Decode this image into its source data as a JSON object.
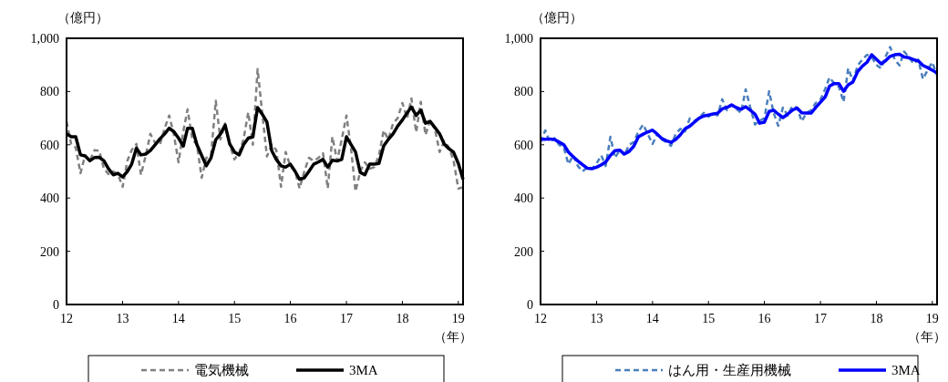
{
  "chart_data": [
    {
      "type": "line",
      "ylabel": "（億円）",
      "xlabel": "（年）",
      "legend": "bottom",
      "grid": false,
      "x": [
        "2012-01",
        "2012-02",
        "2012-03",
        "2012-04",
        "2012-05",
        "2012-06",
        "2012-07",
        "2012-08",
        "2012-09",
        "2012-10",
        "2012-11",
        "2012-12",
        "2013-01",
        "2013-02",
        "2013-03",
        "2013-04",
        "2013-05",
        "2013-06",
        "2013-07",
        "2013-08",
        "2013-09",
        "2013-10",
        "2013-11",
        "2013-12",
        "2014-01",
        "2014-02",
        "2014-03",
        "2014-04",
        "2014-05",
        "2014-06",
        "2014-07",
        "2014-08",
        "2014-09",
        "2014-10",
        "2014-11",
        "2014-12",
        "2015-01",
        "2015-02",
        "2015-03",
        "2015-04",
        "2015-05",
        "2015-06",
        "2015-07",
        "2015-08",
        "2015-09",
        "2015-10",
        "2015-11",
        "2015-12",
        "2016-01",
        "2016-02",
        "2016-03",
        "2016-04",
        "2016-05",
        "2016-06",
        "2016-07",
        "2016-08",
        "2016-09",
        "2016-10",
        "2016-11",
        "2016-12",
        "2017-01",
        "2017-02",
        "2017-03",
        "2017-04",
        "2017-05",
        "2017-06",
        "2017-07",
        "2017-08",
        "2017-09",
        "2017-10",
        "2017-11",
        "2017-12",
        "2018-01",
        "2018-02",
        "2018-03",
        "2018-04",
        "2018-05",
        "2018-06",
        "2018-07",
        "2018-08",
        "2018-09",
        "2018-10",
        "2018-11",
        "2018-12",
        "2019-01",
        "2019-02"
      ],
      "xlim": [
        "2012-01",
        "2019-02"
      ],
      "xticks": [
        {
          "value": "2012-01",
          "label": "12"
        },
        {
          "value": "2013-01",
          "label": "13"
        },
        {
          "value": "2014-01",
          "label": "14"
        },
        {
          "value": "2015-01",
          "label": "15"
        },
        {
          "value": "2016-01",
          "label": "16"
        },
        {
          "value": "2017-01",
          "label": "17"
        },
        {
          "value": "2018-01",
          "label": "18"
        },
        {
          "value": "2019-01",
          "label": "19"
        }
      ],
      "ylim": [
        0,
        1000
      ],
      "yticks": [
        0,
        200,
        400,
        600,
        800,
        {
          "value": 1000,
          "label": "1,000"
        }
      ],
      "series": [
        {
          "name": "電気機械",
          "color": "#808080",
          "line_style": "dashed",
          "values": [
            688,
            600,
            590,
            493,
            560,
            540,
            580,
            578,
            510,
            490,
            500,
            490,
            442,
            540,
            580,
            603,
            487,
            560,
            641,
            607,
            600,
            660,
            710,
            640,
            534,
            650,
            733,
            620,
            600,
            476,
            551,
            560,
            765,
            620,
            680,
            600,
            545,
            570,
            620,
            722,
            600,
            884,
            720,
            556,
            600,
            580,
            442,
            573,
            520,
            500,
            436,
            500,
            551,
            540,
            550,
            568,
            436,
            630,
            540,
            620,
            710,
            580,
            425,
            500,
            534,
            510,
            516,
            560,
            654,
            620,
            680,
            700,
            757,
            700,
            774,
            647,
            761,
            637,
            693,
            660,
            573,
            613,
            590,
            540,
            436,
            440
          ]
        },
        {
          "name": "3MA",
          "color": "#000000",
          "line_style": "solid",
          "values": [
            641,
            630,
            630,
            562,
            558,
            540,
            552,
            553,
            540,
            510,
            487,
            493,
            479,
            500,
            527,
            587,
            562,
            565,
            578,
            600,
            622,
            640,
            662,
            650,
            625,
            595,
            662,
            662,
            600,
            560,
            521,
            551,
            619,
            640,
            674,
            603,
            573,
            562,
            600,
            625,
            630,
            740,
            715,
            685,
            578,
            545,
            521,
            516,
            527,
            500,
            470,
            476,
            500,
            527,
            535,
            545,
            516,
            542,
            539,
            545,
            630,
            600,
            573,
            496,
            487,
            527,
            527,
            530,
            596,
            620,
            641,
            670,
            693,
            720,
            742,
            710,
            730,
            681,
            688,
            665,
            641,
            603,
            585,
            572,
            530,
            470
          ]
        }
      ]
    },
    {
      "type": "line",
      "ylabel": "（億円）",
      "xlabel": "（年）",
      "legend": "bottom",
      "grid": false,
      "x": [
        "2012-01",
        "2012-02",
        "2012-03",
        "2012-04",
        "2012-05",
        "2012-06",
        "2012-07",
        "2012-08",
        "2012-09",
        "2012-10",
        "2012-11",
        "2012-12",
        "2013-01",
        "2013-02",
        "2013-03",
        "2013-04",
        "2013-05",
        "2013-06",
        "2013-07",
        "2013-08",
        "2013-09",
        "2013-10",
        "2013-11",
        "2013-12",
        "2014-01",
        "2014-02",
        "2014-03",
        "2014-04",
        "2014-05",
        "2014-06",
        "2014-07",
        "2014-08",
        "2014-09",
        "2014-10",
        "2014-11",
        "2014-12",
        "2015-01",
        "2015-02",
        "2015-03",
        "2015-04",
        "2015-05",
        "2015-06",
        "2015-07",
        "2015-08",
        "2015-09",
        "2015-10",
        "2015-11",
        "2015-12",
        "2016-01",
        "2016-02",
        "2016-03",
        "2016-04",
        "2016-05",
        "2016-06",
        "2016-07",
        "2016-08",
        "2016-09",
        "2016-10",
        "2016-11",
        "2016-12",
        "2017-01",
        "2017-02",
        "2017-03",
        "2017-04",
        "2017-05",
        "2017-06",
        "2017-07",
        "2017-08",
        "2017-09",
        "2017-10",
        "2017-11",
        "2017-12",
        "2018-01",
        "2018-02",
        "2018-03",
        "2018-04",
        "2018-05",
        "2018-06",
        "2018-07",
        "2018-08",
        "2018-09",
        "2018-10",
        "2018-11",
        "2018-12",
        "2019-01",
        "2019-02"
      ],
      "xlim": [
        "2012-01",
        "2019-02"
      ],
      "xticks": [
        {
          "value": "2012-01",
          "label": "12"
        },
        {
          "value": "2013-01",
          "label": "13"
        },
        {
          "value": "2014-01",
          "label": "14"
        },
        {
          "value": "2015-01",
          "label": "15"
        },
        {
          "value": "2016-01",
          "label": "16"
        },
        {
          "value": "2017-01",
          "label": "17"
        },
        {
          "value": "2018-01",
          "label": "18"
        },
        {
          "value": "2019-01",
          "label": "19"
        }
      ],
      "ylim": [
        0,
        1000
      ],
      "yticks": [
        0,
        200,
        400,
        600,
        800,
        {
          "value": 1000,
          "label": "1,000"
        }
      ],
      "series": [
        {
          "name": "はん用・生産用機械",
          "color": "#4a7ebb",
          "line_style": "dashed",
          "values": [
            610,
            654,
            610,
            625,
            600,
            590,
            527,
            560,
            520,
            500,
            515,
            510,
            530,
            560,
            520,
            630,
            551,
            580,
            560,
            600,
            610,
            650,
            676,
            640,
            603,
            640,
            620,
            610,
            596,
            640,
            660,
            650,
            699,
            690,
            700,
            720,
            705,
            720,
            710,
            771,
            730,
            750,
            735,
            720,
            808,
            740,
            676,
            690,
            700,
            801,
            720,
            671,
            740,
            710,
            745,
            740,
            688,
            720,
            730,
            757,
            770,
            810,
            853,
            830,
            818,
            761,
            887,
            840,
            898,
            920,
            938,
            930,
            900,
            887,
            930,
            967,
            920,
            898,
            950,
            930,
            904,
            920,
            847,
            880,
            910,
            860
          ]
        },
        {
          "name": "3MA",
          "color": "#0000ff",
          "line_style": "solid",
          "values": [
            621,
            621,
            622,
            620,
            610,
            600,
            573,
            555,
            539,
            525,
            512,
            510,
            516,
            525,
            535,
            560,
            578,
            580,
            565,
            575,
            595,
            630,
            640,
            648,
            655,
            640,
            624,
            615,
            609,
            620,
            637,
            660,
            670,
            685,
            700,
            708,
            712,
            716,
            718,
            735,
            740,
            750,
            740,
            733,
            743,
            730,
            715,
            681,
            685,
            725,
            730,
            715,
            702,
            715,
            730,
            738,
            720,
            719,
            719,
            740,
            760,
            780,
            820,
            830,
            830,
            801,
            825,
            836,
            875,
            895,
            910,
            938,
            921,
            904,
            915,
            932,
            938,
            940,
            930,
            927,
            920,
            915,
            898,
            890,
            880,
            870
          ]
        }
      ]
    }
  ]
}
